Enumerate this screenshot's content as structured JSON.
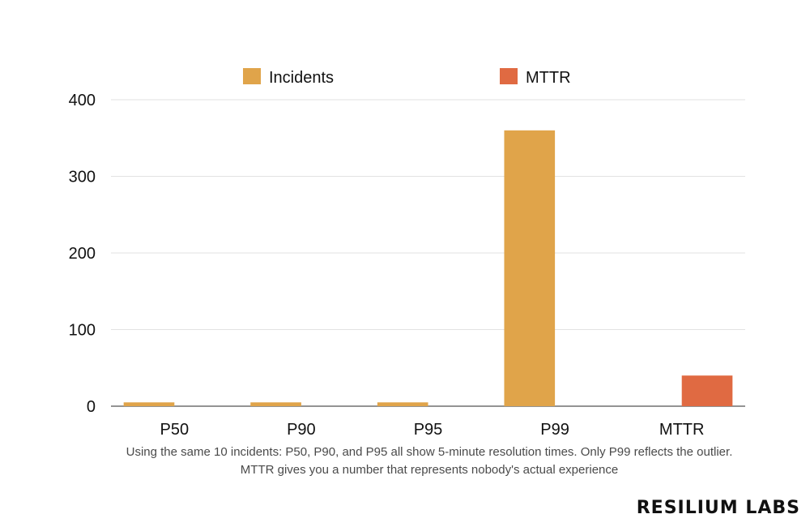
{
  "chart_data": {
    "type": "bar",
    "categories": [
      "P50",
      "P90",
      "P95",
      "P99",
      "MTTR"
    ],
    "series": [
      {
        "name": "Incidents",
        "color": "#E0A44A",
        "values": [
          5,
          5,
          5,
          360,
          null
        ]
      },
      {
        "name": "MTTR",
        "color": "#E06A42",
        "values": [
          null,
          null,
          null,
          null,
          40
        ]
      }
    ],
    "ylim": [
      0,
      400
    ],
    "yticks": [
      0,
      100,
      200,
      300,
      400
    ],
    "grid": true,
    "legend": "top-center"
  },
  "caption": "Using the same 10 incidents: P50, P90, and P95 all show 5-minute resolution times. Only P99 reflects the outlier. MTTR gives you a number that represents nobody's actual experience",
  "brand": "RESILIUM LABS"
}
